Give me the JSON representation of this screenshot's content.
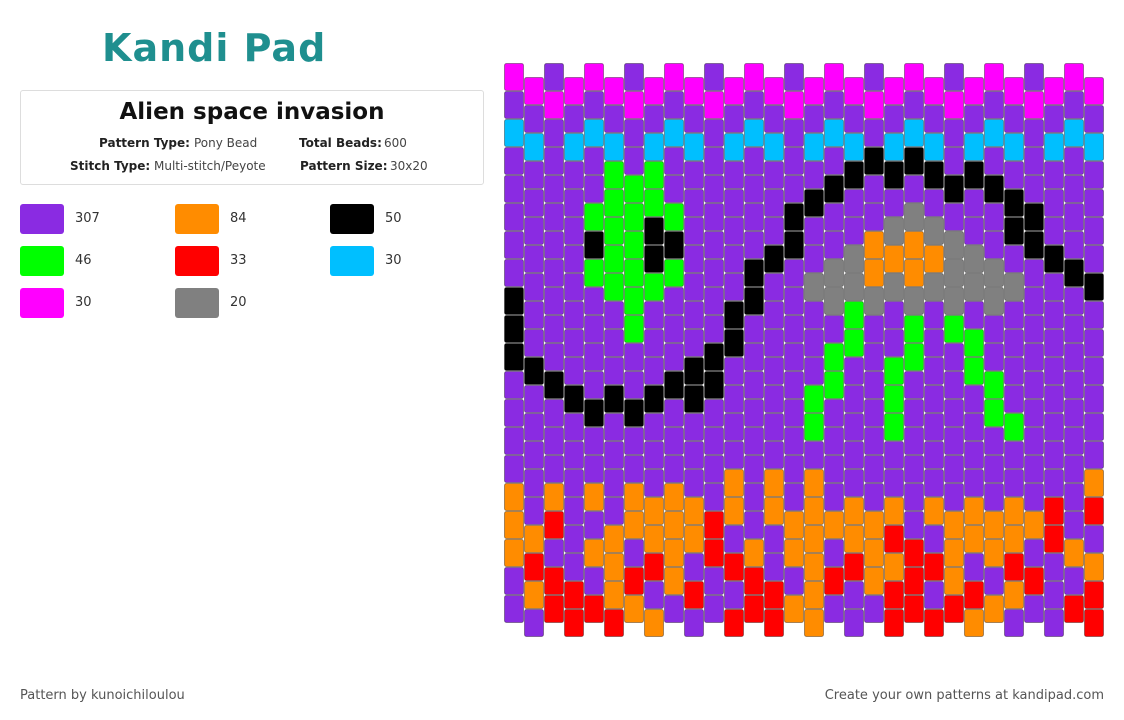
{
  "header": {
    "logo": "Kandi Pad"
  },
  "pattern": {
    "title": "Alien space invasion",
    "type_label": "Pattern Type:",
    "type": "Pony Bead",
    "beads_label": "Total Beads:",
    "beads": 600,
    "stitch_label": "Stitch Type:",
    "stitch": "Multi-stitch/Peyote",
    "size_label": "Pattern Size:",
    "size": "30x20"
  },
  "legend": [
    {
      "color": "#8a2be2",
      "count": 307
    },
    {
      "color": "#ff8c00",
      "count": 84
    },
    {
      "color": "#000000",
      "count": 50
    },
    {
      "color": "#00ff00",
      "count": 46
    },
    {
      "color": "#ff0000",
      "count": 33
    },
    {
      "color": "#00bfff",
      "count": 30
    },
    {
      "color": "#ff00ff",
      "count": 30
    },
    {
      "color": "#808080",
      "count": 20
    }
  ],
  "footer": {
    "author": "Pattern by kunoichiloulou",
    "cta": "Create your own patterns at kandipad.com"
  }
}
